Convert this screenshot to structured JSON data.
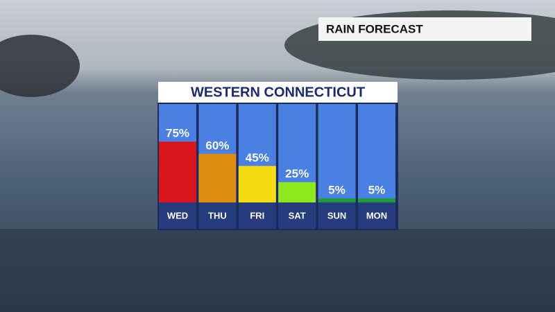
{
  "banner": "RAIN FORECAST",
  "chart_data": {
    "type": "bar",
    "title": "WESTERN CONNECTICUT",
    "categories": [
      "WED",
      "THU",
      "FRI",
      "SAT",
      "SUN",
      "MON"
    ],
    "values": [
      75,
      60,
      45,
      25,
      5,
      5
    ],
    "value_labels": [
      "75%",
      "60%",
      "45%",
      "25%",
      "5%",
      "5%"
    ],
    "colors": [
      "#d8161b",
      "#df8c12",
      "#f6dc14",
      "#8fe81d",
      "#1f9d3a",
      "#1f9d3a"
    ]
  }
}
